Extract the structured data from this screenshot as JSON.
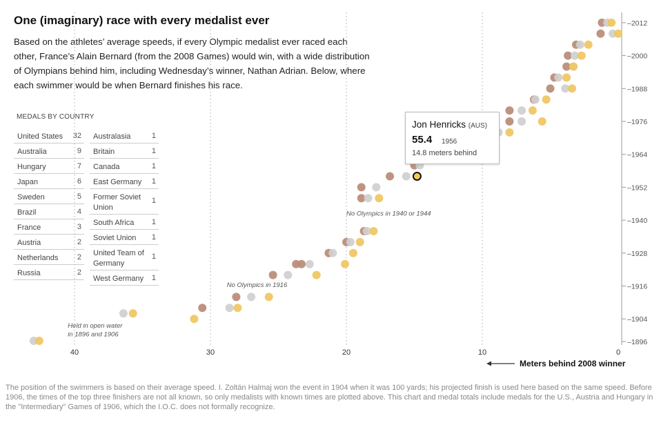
{
  "header": {
    "title": "One (imaginary) race with every medalist ever",
    "intro": "Based on the athletes’ average speeds, if every Olympic medalist ever raced each other, France’s Alain Bernard (from the 2008 Games) would win, with a wide distribution of Olympians behind him, including Wednesday’s winner, Nathan Adrian. Below, where each swimmer would be when Bernard finishes his race."
  },
  "medals": {
    "title": "MEDALS BY COUNTRY",
    "left": [
      {
        "country": "United States",
        "count": "32"
      },
      {
        "country": "Australia",
        "count": "9"
      },
      {
        "country": "Hungary",
        "count": "7"
      },
      {
        "country": "Japan",
        "count": "6"
      },
      {
        "country": "Sweden",
        "count": "5"
      },
      {
        "country": "Brazil",
        "count": "4"
      },
      {
        "country": "France",
        "count": "3"
      },
      {
        "country": "Austria",
        "count": "2"
      },
      {
        "country": "Netherlands",
        "count": "2"
      },
      {
        "country": "Russia",
        "count": "2"
      }
    ],
    "right": [
      {
        "country": "Australasia",
        "count": "1"
      },
      {
        "country": "Britain",
        "count": "1"
      },
      {
        "country": "Canada",
        "count": "1"
      },
      {
        "country": "East Germany",
        "count": "1"
      },
      {
        "country": "Former Soviet Union",
        "count": "1"
      },
      {
        "country": "South Africa",
        "count": "1"
      },
      {
        "country": "Soviet Union",
        "count": "1"
      },
      {
        "country": "United Team of Germany",
        "count": "1"
      },
      {
        "country": "West Germany",
        "count": "1"
      }
    ]
  },
  "tooltip": {
    "name": "Jon Henricks",
    "country": "(AUS)",
    "time": "55.4",
    "year": "1956",
    "behind": "14.8 meters behind"
  },
  "axis": {
    "x_title": "Meters behind 2008 winner",
    "arrow": "←"
  },
  "footnote": "The position of the swimmers is based on their average speed. I. Zoltán Halmaj won the event in 1904 when it was 100 yards; his projected finish is used here based on the same speed. Before 1906, the times of the top three finishers are not all known, so only medalists with known times are plotted above. This chart and medal totals include medals for the U.S., Austria and Hungary in the \"Intermediary\" Games of 1906, which the I.O.C. does not formally recognize.",
  "chart_data": {
    "type": "scatter",
    "xlabel": "Meters behind 2008 winner",
    "ylabel": "",
    "xlim": [
      44,
      0
    ],
    "ylim": [
      1894,
      2014
    ],
    "x_ticks": [
      40,
      30,
      20,
      10,
      0
    ],
    "y_ticks": [
      1896,
      1904,
      1916,
      1928,
      1940,
      1952,
      1964,
      1976,
      1988,
      2000,
      2012
    ],
    "colors": {
      "gold": "#efc55f",
      "silver": "#cfcfcf",
      "bronze": "#b98b76",
      "highlight": "#f3c74c"
    },
    "annotations": [
      {
        "text": "Held in open water",
        "x": 40.5,
        "y": 1900.8
      },
      {
        "text": "in 1896 and 1906",
        "x": 40.5,
        "y": 1897.6
      },
      {
        "text": "No Olympics in 1916",
        "x": 28.8,
        "y": 1915.6
      },
      {
        "text": "No Olympics in 1940 or 1944",
        "x": 20.0,
        "y": 1941.6
      }
    ],
    "highlight": {
      "year": 1956,
      "x": 14.8
    },
    "points": [
      {
        "year": 1896,
        "x": 43.0,
        "medal": "silver"
      },
      {
        "year": 1896,
        "x": 42.6,
        "medal": "gold"
      },
      {
        "year": 1906,
        "x": 36.4,
        "medal": "silver"
      },
      {
        "year": 1906,
        "x": 35.7,
        "medal": "gold"
      },
      {
        "year": 1904,
        "x": 31.2,
        "medal": "gold"
      },
      {
        "year": 1908,
        "x": 30.6,
        "medal": "bronze"
      },
      {
        "year": 1908,
        "x": 28.6,
        "medal": "silver"
      },
      {
        "year": 1908,
        "x": 28.0,
        "medal": "gold"
      },
      {
        "year": 1912,
        "x": 28.1,
        "medal": "bronze"
      },
      {
        "year": 1912,
        "x": 27.0,
        "medal": "silver"
      },
      {
        "year": 1912,
        "x": 25.7,
        "medal": "gold"
      },
      {
        "year": 1920,
        "x": 25.4,
        "medal": "bronze"
      },
      {
        "year": 1920,
        "x": 24.3,
        "medal": "silver"
      },
      {
        "year": 1920,
        "x": 22.2,
        "medal": "gold"
      },
      {
        "year": 1924,
        "x": 23.7,
        "medal": "bronze"
      },
      {
        "year": 1924,
        "x": 23.3,
        "medal": "bronze"
      },
      {
        "year": 1924,
        "x": 22.7,
        "medal": "silver"
      },
      {
        "year": 1924,
        "x": 20.1,
        "medal": "gold"
      },
      {
        "year": 1928,
        "x": 21.3,
        "medal": "bronze"
      },
      {
        "year": 1928,
        "x": 21.0,
        "medal": "silver"
      },
      {
        "year": 1928,
        "x": 19.5,
        "medal": "gold"
      },
      {
        "year": 1932,
        "x": 20.0,
        "medal": "bronze"
      },
      {
        "year": 1932,
        "x": 19.7,
        "medal": "silver"
      },
      {
        "year": 1932,
        "x": 19.0,
        "medal": "gold"
      },
      {
        "year": 1936,
        "x": 18.7,
        "medal": "bronze"
      },
      {
        "year": 1936,
        "x": 18.5,
        "medal": "silver"
      },
      {
        "year": 1936,
        "x": 18.0,
        "medal": "gold"
      },
      {
        "year": 1948,
        "x": 18.9,
        "medal": "bronze"
      },
      {
        "year": 1948,
        "x": 18.4,
        "medal": "silver"
      },
      {
        "year": 1948,
        "x": 17.6,
        "medal": "gold"
      },
      {
        "year": 1952,
        "x": 18.9,
        "medal": "bronze"
      },
      {
        "year": 1952,
        "x": 17.8,
        "medal": "silver"
      },
      {
        "year": 1956,
        "x": 16.8,
        "medal": "bronze"
      },
      {
        "year": 1956,
        "x": 15.6,
        "medal": "silver"
      },
      {
        "year": 1956,
        "x": 14.8,
        "medal": "highlight"
      },
      {
        "year": 1960,
        "x": 15.0,
        "medal": "bronze"
      },
      {
        "year": 1960,
        "x": 14.6,
        "medal": "silver"
      },
      {
        "year": 1964,
        "x": 13.8,
        "medal": "bronze"
      },
      {
        "year": 1964,
        "x": 13.0,
        "medal": "silver"
      },
      {
        "year": 1964,
        "x": 12.5,
        "medal": "gold"
      },
      {
        "year": 1968,
        "x": 11.1,
        "medal": "bronze"
      },
      {
        "year": 1968,
        "x": 10.5,
        "medal": "silver"
      },
      {
        "year": 1968,
        "x": 10.0,
        "medal": "gold"
      },
      {
        "year": 1972,
        "x": 9.1,
        "medal": "bronze"
      },
      {
        "year": 1972,
        "x": 8.8,
        "medal": "silver"
      },
      {
        "year": 1972,
        "x": 8.0,
        "medal": "gold"
      },
      {
        "year": 1976,
        "x": 8.0,
        "medal": "bronze"
      },
      {
        "year": 1976,
        "x": 7.1,
        "medal": "silver"
      },
      {
        "year": 1976,
        "x": 5.6,
        "medal": "gold"
      },
      {
        "year": 1980,
        "x": 8.0,
        "medal": "bronze"
      },
      {
        "year": 1980,
        "x": 7.1,
        "medal": "silver"
      },
      {
        "year": 1980,
        "x": 6.3,
        "medal": "gold"
      },
      {
        "year": 1984,
        "x": 6.2,
        "medal": "bronze"
      },
      {
        "year": 1984,
        "x": 6.1,
        "medal": "silver"
      },
      {
        "year": 1984,
        "x": 5.3,
        "medal": "gold"
      },
      {
        "year": 1988,
        "x": 5.0,
        "medal": "bronze"
      },
      {
        "year": 1988,
        "x": 3.9,
        "medal": "silver"
      },
      {
        "year": 1988,
        "x": 3.4,
        "medal": "gold"
      },
      {
        "year": 1992,
        "x": 4.7,
        "medal": "bronze"
      },
      {
        "year": 1992,
        "x": 4.4,
        "medal": "silver"
      },
      {
        "year": 1992,
        "x": 3.8,
        "medal": "gold"
      },
      {
        "year": 1996,
        "x": 3.8,
        "medal": "bronze"
      },
      {
        "year": 1996,
        "x": 3.3,
        "medal": "silver"
      },
      {
        "year": 1996,
        "x": 3.3,
        "medal": "gold"
      },
      {
        "year": 2000,
        "x": 3.7,
        "medal": "bronze"
      },
      {
        "year": 2000,
        "x": 3.2,
        "medal": "silver"
      },
      {
        "year": 2000,
        "x": 2.7,
        "medal": "gold"
      },
      {
        "year": 2004,
        "x": 3.1,
        "medal": "bronze"
      },
      {
        "year": 2004,
        "x": 2.8,
        "medal": "silver"
      },
      {
        "year": 2004,
        "x": 2.2,
        "medal": "gold"
      },
      {
        "year": 2008,
        "x": 1.3,
        "medal": "bronze"
      },
      {
        "year": 2008,
        "x": 0.4,
        "medal": "silver"
      },
      {
        "year": 2008,
        "x": 0.0,
        "medal": "gold"
      },
      {
        "year": 2012,
        "x": 1.2,
        "medal": "bronze"
      },
      {
        "year": 2012,
        "x": 0.8,
        "medal": "silver"
      },
      {
        "year": 2012,
        "x": 0.5,
        "medal": "gold"
      }
    ]
  }
}
